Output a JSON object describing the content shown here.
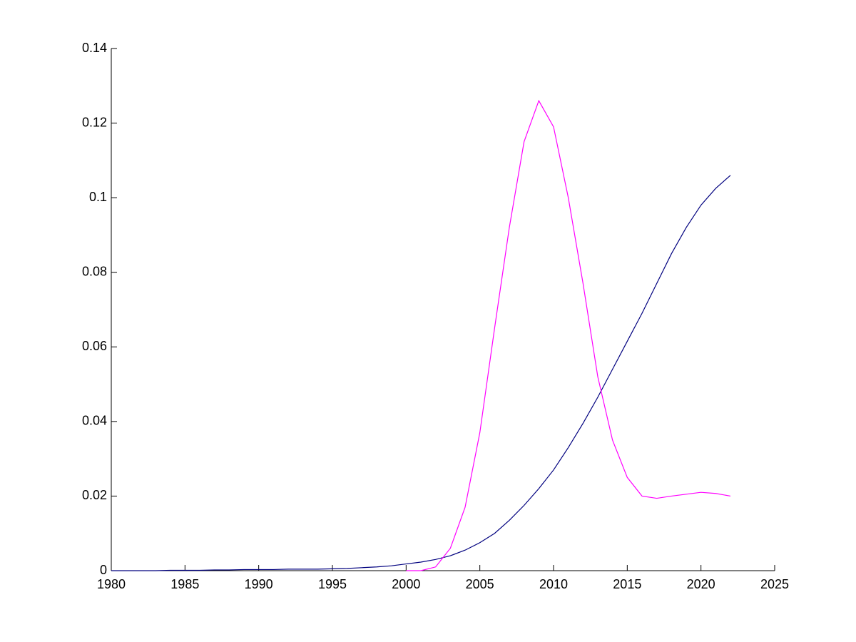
{
  "chart_data": {
    "type": "line",
    "x": [
      1980,
      1981,
      1982,
      1983,
      1984,
      1985,
      1986,
      1987,
      1988,
      1989,
      1990,
      1991,
      1992,
      1993,
      1994,
      1995,
      1996,
      1997,
      1998,
      1999,
      2000,
      2001,
      2002,
      2003,
      2004,
      2005,
      2006,
      2007,
      2008,
      2009,
      2010,
      2011,
      2012,
      2013,
      2014,
      2015,
      2016,
      2017,
      2018,
      2019,
      2020,
      2021,
      2022
    ],
    "series": [
      {
        "color": "#00007f",
        "values": [
          0,
          0,
          0,
          0,
          0.0001,
          0.0001,
          0.0001,
          0.0002,
          0.0002,
          0.0003,
          0.0003,
          0.0003,
          0.0004,
          0.0004,
          0.0004,
          0.0005,
          0.0006,
          0.0008,
          0.001,
          0.0013,
          0.0018,
          0.0023,
          0.003,
          0.004,
          0.0055,
          0.0075,
          0.01,
          0.0135,
          0.0175,
          0.022,
          0.027,
          0.033,
          0.0395,
          0.0465,
          0.054,
          0.0615,
          0.069,
          0.077,
          0.085,
          0.092,
          0.098,
          0.1025,
          0.106
        ]
      },
      {
        "color": "#ff00ff",
        "values": [
          null,
          null,
          null,
          null,
          null,
          null,
          null,
          null,
          null,
          null,
          null,
          null,
          null,
          null,
          null,
          null,
          null,
          null,
          null,
          null,
          0,
          0,
          0.001,
          0.006,
          0.017,
          0.037,
          0.065,
          0.092,
          0.115,
          0.126,
          0.119,
          0.1,
          0.077,
          0.052,
          0.035,
          0.025,
          0.02,
          0.0194,
          0.02,
          0.0205,
          0.021,
          0.0207,
          0.02
        ]
      }
    ],
    "xlim": [
      1980,
      2025
    ],
    "xticks": [
      1980,
      1985,
      1990,
      1995,
      2000,
      2005,
      2010,
      2015,
      2020,
      2025
    ],
    "ylim": [
      0,
      0.14
    ],
    "yticks": [
      0,
      0.02,
      0.04,
      0.06,
      0.08,
      0.1,
      0.12,
      0.14
    ]
  }
}
